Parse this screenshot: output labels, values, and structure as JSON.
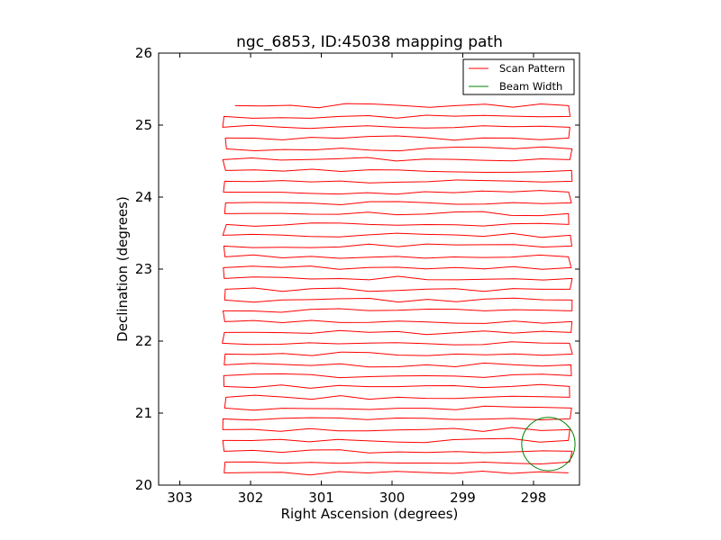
{
  "chart_data": {
    "type": "line",
    "title": "ngc_6853, ID:45038 mapping path",
    "xlabel": "Right Ascension (degrees)",
    "ylabel": "Declination (degrees)",
    "xlim": [
      303.3,
      297.35
    ],
    "ylim": [
      20,
      26
    ],
    "x_ticks": [
      "303",
      "302",
      "301",
      "300",
      "299",
      "298"
    ],
    "y_ticks": [
      "20",
      "21",
      "22",
      "23",
      "24",
      "25",
      "26"
    ],
    "legend": {
      "position": "top-right",
      "entries": [
        {
          "label": "Scan Pattern",
          "color": "#ff0000"
        },
        {
          "label": "Beam Width",
          "color": "#008000"
        }
      ]
    },
    "scan_pattern": {
      "color": "#ff0000",
      "east_edge_ra": 302.4,
      "west_edge_ra": 297.45,
      "start_ra": 302.22,
      "start_dec": 25.27,
      "first_pass_dec": 25.27,
      "last_pass_dec": 20.17,
      "pass_spacing_dec": 0.15,
      "jitter_dec": 0.03
    },
    "beam_width": {
      "color": "#008000",
      "center_ra": 297.79,
      "center_dec": 20.57,
      "radius_dec": 0.37
    }
  }
}
